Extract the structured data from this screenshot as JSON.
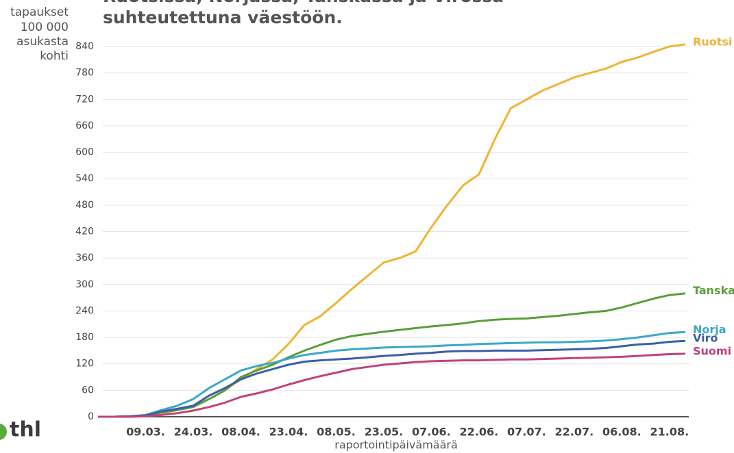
{
  "chart_data": {
    "type": "line",
    "title": [
      "Ruotsissa, Norjassa, Tanskassa ja Virossa",
      "suhteutettuna väestöön."
    ],
    "y_label": [
      "tapaukset",
      "100 000",
      "asukasta",
      "kohti"
    ],
    "x_label": "raportointipäivämäärä",
    "logo": "thl",
    "categories": [
      null,
      null,
      null,
      "09.03.",
      null,
      null,
      "24.03.",
      null,
      null,
      "08.04.",
      null,
      null,
      "23.04.",
      null,
      null,
      "08.05.",
      null,
      null,
      "23.05.",
      null,
      null,
      "07.06.",
      null,
      null,
      "22.06.",
      null,
      null,
      "07.07.",
      null,
      null,
      "22.07.",
      null,
      null,
      "06.08.",
      null,
      null,
      "21.08.",
      null
    ],
    "ylim": [
      0,
      840
    ],
    "yticks": [
      0,
      60,
      120,
      180,
      240,
      300,
      360,
      420,
      480,
      540,
      600,
      660,
      720,
      780,
      840
    ],
    "grid": true,
    "series": [
      {
        "name": "Ruotsi",
        "color": "#f0b334",
        "values": [
          0,
          0,
          1,
          2,
          8,
          15,
          25,
          40,
          60,
          85,
          108,
          130,
          165,
          208,
          228,
          258,
          290,
          320,
          350,
          360,
          375,
          430,
          480,
          525,
          550,
          630,
          700,
          720,
          740,
          755,
          770,
          780,
          790,
          805,
          815,
          828,
          840,
          845
        ]
      },
      {
        "name": "Tanska",
        "color": "#5a9e3a",
        "values": [
          0,
          0,
          1,
          3,
          10,
          15,
          22,
          40,
          60,
          90,
          105,
          118,
          135,
          150,
          163,
          175,
          183,
          188,
          193,
          197,
          201,
          205,
          208,
          212,
          217,
          220,
          222,
          223,
          226,
          229,
          233,
          237,
          240,
          248,
          258,
          268,
          276,
          280
        ]
      },
      {
        "name": "Norja",
        "color": "#3aa8c8",
        "values": [
          0,
          0,
          1,
          4,
          15,
          25,
          40,
          65,
          85,
          105,
          115,
          122,
          132,
          140,
          145,
          150,
          153,
          155,
          157,
          158,
          159,
          160,
          162,
          163,
          165,
          166,
          167,
          168,
          169,
          169,
          170,
          171,
          173,
          176,
          180,
          185,
          190,
          192
        ]
      },
      {
        "name": "Viro",
        "color": "#3b5ea8",
        "values": [
          0,
          0,
          1,
          3,
          12,
          18,
          25,
          48,
          65,
          85,
          98,
          108,
          118,
          125,
          128,
          130,
          132,
          135,
          138,
          140,
          143,
          145,
          148,
          149,
          149,
          150,
          150,
          150,
          151,
          152,
          153,
          154,
          156,
          160,
          164,
          166,
          170,
          172
        ]
      },
      {
        "name": "Suomi",
        "color": "#c0427a",
        "values": [
          0,
          0,
          0,
          1,
          4,
          8,
          14,
          22,
          32,
          45,
          53,
          62,
          73,
          83,
          92,
          100,
          108,
          113,
          118,
          121,
          124,
          126,
          127,
          128,
          128,
          129,
          130,
          130,
          131,
          132,
          133,
          134,
          135,
          136,
          138,
          140,
          142,
          143
        ]
      }
    ]
  }
}
